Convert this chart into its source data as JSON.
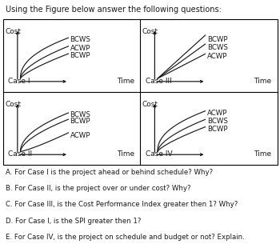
{
  "title": "Using the Figure below answer the following questions:",
  "cases": [
    {
      "name": "Case I",
      "grid_row": 0,
      "grid_col": 0,
      "lines": [
        {
          "label": "BCWS",
          "curve": "high_curve"
        },
        {
          "label": "ACWP",
          "curve": "mid_curve"
        },
        {
          "label": "BCWP",
          "curve": "low_curve"
        }
      ]
    },
    {
      "name": "Case III",
      "grid_row": 0,
      "grid_col": 1,
      "lines": [
        {
          "label": "BCWP",
          "curve": "high_straight"
        },
        {
          "label": "BCWS",
          "curve": "mid_straight"
        },
        {
          "label": "ACWP",
          "curve": "low_straight"
        }
      ]
    },
    {
      "name": "Case II",
      "grid_row": 1,
      "grid_col": 0,
      "lines": [
        {
          "label": "BCWS",
          "curve": "high_mid_curve"
        },
        {
          "label": "BCWP",
          "curve": "mid_curve"
        },
        {
          "label": "ACWP",
          "curve": "vlow_curve"
        }
      ]
    },
    {
      "name": "Case IV",
      "grid_row": 1,
      "grid_col": 1,
      "lines": [
        {
          "label": "ACWP",
          "curve": "high_curve"
        },
        {
          "label": "BCWS",
          "curve": "mid_curve"
        },
        {
          "label": "BCWP",
          "curve": "low_curve"
        }
      ]
    }
  ],
  "questions": [
    "A. For Case I is the project ahead or behind schedule? Why?",
    "B. For Case II, is the project over or under cost? Why?",
    "C. For Case III, is the Cost Performance Index greater then 1? Why?",
    "D. For Case I, is the SPI greater then 1?",
    "E. For Case IV, is the project on schedule and budget or not? Explain."
  ],
  "line_color": "#1a1a1a",
  "bg_color": "#ffffff",
  "title_fontsize": 7.0,
  "label_fontsize": 6.2,
  "axis_label_fontsize": 6.5,
  "case_fontsize": 6.5,
  "q_fontsize": 6.2
}
